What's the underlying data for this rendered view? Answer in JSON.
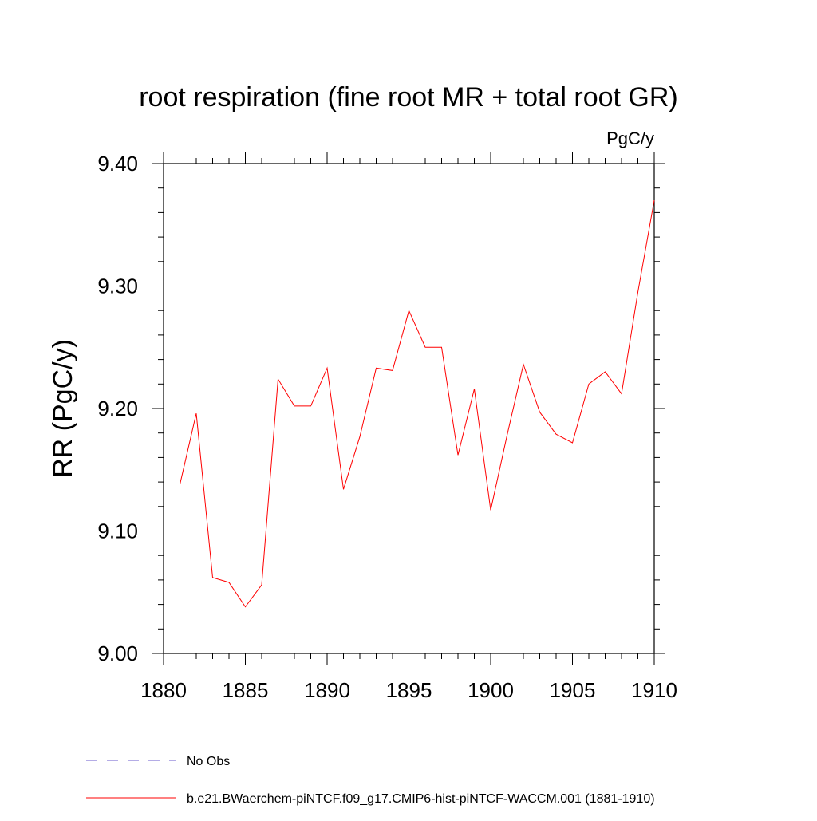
{
  "chart_data": {
    "type": "line",
    "title": "root respiration (fine root MR + total root GR)",
    "units": "PgC/y",
    "xlabel": "",
    "ylabel": "RR  (PgC/y)",
    "xlim": [
      1880,
      1910
    ],
    "ylim": [
      9.0,
      9.4
    ],
    "x_ticks": [
      1880,
      1885,
      1890,
      1895,
      1900,
      1905,
      1910
    ],
    "y_ticks": [
      "9.00",
      "9.10",
      "9.20",
      "9.30",
      "9.40"
    ],
    "grid": false,
    "legend_position": "bottom-left",
    "colors": {
      "series": "#ff0000",
      "obs": "#6a5acd"
    },
    "series": [
      {
        "name": "b.e21.BWaerchem-piNTCF.f09_g17.CMIP6-hist-piNTCF-WACCM.001 (1881-1910)",
        "x": [
          1881,
          1882,
          1883,
          1884,
          1885,
          1886,
          1887,
          1888,
          1889,
          1890,
          1891,
          1892,
          1893,
          1894,
          1895,
          1896,
          1897,
          1898,
          1899,
          1900,
          1901,
          1902,
          1903,
          1904,
          1905,
          1906,
          1907,
          1908,
          1909,
          1910
        ],
        "values": [
          9.138,
          9.196,
          9.062,
          9.058,
          9.038,
          9.056,
          9.224,
          9.202,
          9.202,
          9.233,
          9.134,
          9.177,
          9.233,
          9.231,
          9.28,
          9.25,
          9.25,
          9.162,
          9.216,
          9.117,
          9.178,
          9.236,
          9.197,
          9.179,
          9.172,
          9.22,
          9.23,
          9.212,
          9.295,
          9.37
        ]
      }
    ],
    "legend": [
      {
        "label": "No Obs",
        "style": "dashed",
        "color": "#6a5acd"
      },
      {
        "label": "b.e21.BWaerchem-piNTCF.f09_g17.CMIP6-hist-piNTCF-WACCM.001 (1881-1910)",
        "style": "solid",
        "color": "#ff0000"
      }
    ]
  }
}
